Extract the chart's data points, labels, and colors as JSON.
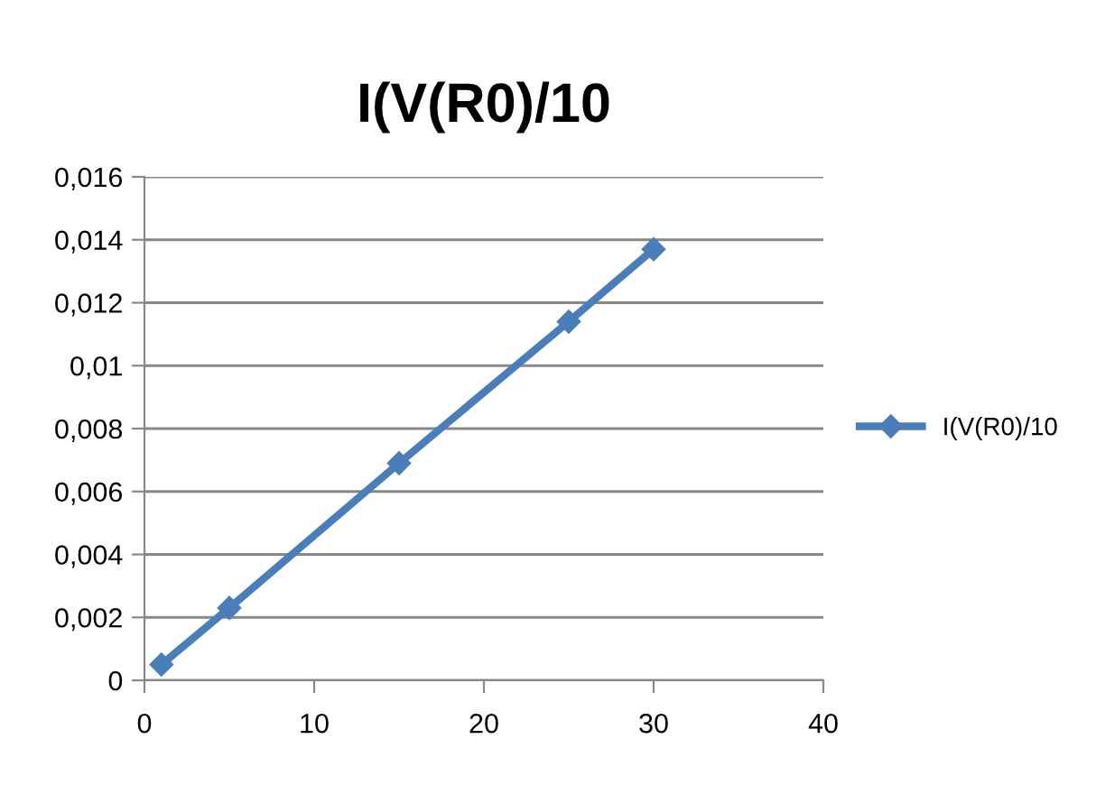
{
  "chart_data": {
    "type": "line",
    "title": "I(V(R0)/10",
    "x": [
      1,
      5,
      15,
      25,
      30
    ],
    "series": [
      {
        "name": "I(V(R0)/10",
        "color": "#4a7ebb",
        "values": [
          0.0005,
          0.0023,
          0.0069,
          0.0114,
          0.0137
        ]
      }
    ],
    "xlim": [
      0,
      40
    ],
    "xticks": [
      0,
      10,
      20,
      30,
      40
    ],
    "ylim": [
      0,
      0.016
    ],
    "yticks": [
      {
        "value": 0,
        "label": "0"
      },
      {
        "value": 0.002,
        "label": "0,002"
      },
      {
        "value": 0.004,
        "label": "0,004"
      },
      {
        "value": 0.006,
        "label": "0,006"
      },
      {
        "value": 0.008,
        "label": "0,008"
      },
      {
        "value": 0.01,
        "label": "0,01"
      },
      {
        "value": 0.012,
        "label": "0,012"
      },
      {
        "value": 0.014,
        "label": "0,014"
      },
      {
        "value": 0.016,
        "label": "0,016"
      }
    ],
    "grid": "y",
    "legend": "right",
    "marker": "diamond",
    "line_style": "solid"
  }
}
